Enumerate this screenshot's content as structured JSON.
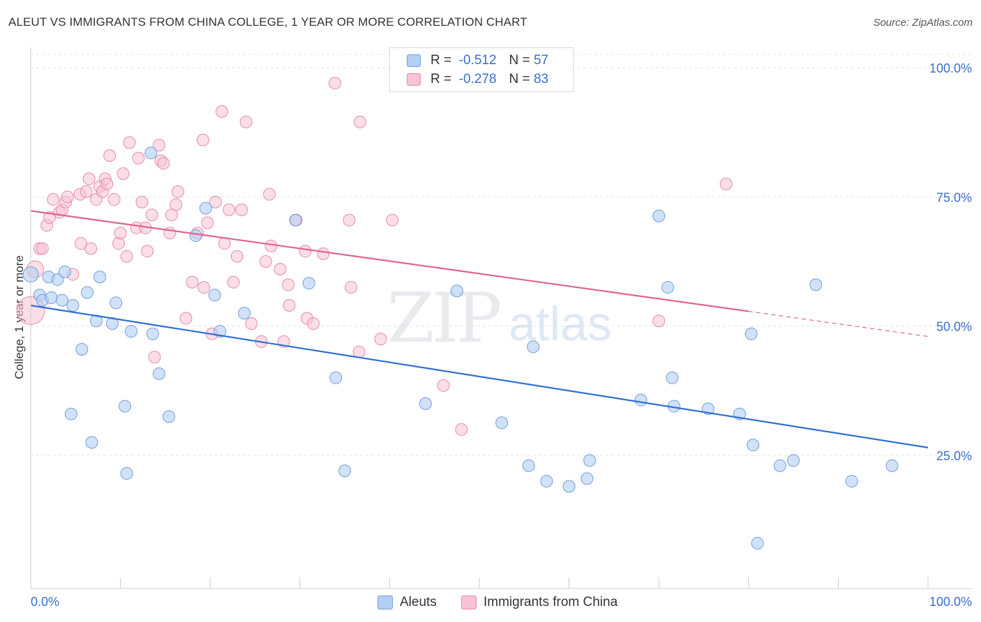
{
  "title": "ALEUT VS IMMIGRANTS FROM CHINA COLLEGE, 1 YEAR OR MORE CORRELATION CHART",
  "source": "Source: ZipAtlas.com",
  "watermark": {
    "zip": "ZIP",
    "atlas": "atlas"
  },
  "legend": {
    "r_label": "R =",
    "n_label": "N =",
    "aleuts": {
      "r": "-0.512",
      "n": "57"
    },
    "china": {
      "r": "-0.278",
      "n": "83"
    }
  },
  "chart_data": {
    "type": "scatter",
    "title": "ALEUT VS IMMIGRANTS FROM CHINA COLLEGE, 1 YEAR OR MORE CORRELATION CHART",
    "xlabel": "",
    "ylabel": "College, 1 year or more",
    "xlim": [
      0,
      100
    ],
    "ylim": [
      0,
      100
    ],
    "x_tick_labels": [
      "0.0%",
      "100.0%"
    ],
    "y_tick_labels": [
      "100.0%",
      "75.0%",
      "50.0%",
      "25.0%"
    ],
    "y_tick_values": [
      100,
      75,
      50,
      25
    ],
    "grid": true,
    "legend_position": "top-center",
    "colors": {
      "aleuts_fill": "#b3cff3",
      "aleuts_stroke": "#6f9fdc",
      "aleuts_line": "#2f6fd0",
      "china_fill": "#f8c3d3",
      "china_stroke": "#e88aaa",
      "china_line": "#e0648d",
      "grid": "#e3e3e3",
      "axis_label": "#3b6fc5"
    },
    "series": [
      {
        "name": "Aleuts",
        "trend": {
          "x": [
            0,
            100
          ],
          "y": [
            54.0,
            26.5
          ],
          "solid_until": 100
        },
        "points": [
          [
            0.0,
            60.0
          ],
          [
            1.0,
            56.0
          ],
          [
            1.3,
            55.0
          ],
          [
            2.0,
            59.5
          ],
          [
            2.3,
            55.5
          ],
          [
            3.0,
            59.0
          ],
          [
            3.5,
            55.0
          ],
          [
            3.8,
            60.5
          ],
          [
            4.5,
            33.0
          ],
          [
            4.7,
            54.0
          ],
          [
            5.7,
            45.5
          ],
          [
            6.3,
            56.5
          ],
          [
            6.8,
            27.5
          ],
          [
            7.3,
            51.0
          ],
          [
            7.7,
            59.5
          ],
          [
            9.1,
            50.5
          ],
          [
            9.5,
            54.5
          ],
          [
            10.5,
            34.5
          ],
          [
            10.7,
            21.5
          ],
          [
            11.2,
            49.0
          ],
          [
            13.4,
            83.5
          ],
          [
            13.6,
            48.5
          ],
          [
            14.3,
            40.8
          ],
          [
            15.4,
            32.5
          ],
          [
            18.4,
            67.5
          ],
          [
            19.5,
            72.8
          ],
          [
            20.5,
            56.0
          ],
          [
            21.1,
            49.0
          ],
          [
            23.8,
            52.5
          ],
          [
            29.5,
            70.5
          ],
          [
            31.0,
            58.3
          ],
          [
            34.0,
            40.0
          ],
          [
            35.0,
            22.0
          ],
          [
            44.0,
            35.0
          ],
          [
            47.5,
            56.8
          ],
          [
            52.5,
            31.3
          ],
          [
            55.5,
            23.0
          ],
          [
            56.0,
            46.0
          ],
          [
            57.5,
            20.0
          ],
          [
            60.0,
            19.0
          ],
          [
            62.0,
            20.5
          ],
          [
            62.3,
            24.0
          ],
          [
            68.0,
            35.7
          ],
          [
            70.0,
            71.3
          ],
          [
            71.0,
            57.5
          ],
          [
            71.5,
            40.0
          ],
          [
            71.7,
            34.5
          ],
          [
            75.5,
            34.0
          ],
          [
            79.0,
            33.0
          ],
          [
            80.3,
            48.5
          ],
          [
            80.5,
            27.0
          ],
          [
            81.0,
            8.0
          ],
          [
            83.5,
            23.0
          ],
          [
            85.0,
            24.0
          ],
          [
            87.5,
            58.0
          ],
          [
            91.5,
            20.0
          ],
          [
            96.0,
            23.0
          ]
        ]
      },
      {
        "name": "Immigrants from China",
        "trend": {
          "x": [
            0,
            100
          ],
          "y": [
            72.3,
            48.0
          ],
          "solid_until": 80
        },
        "points": [
          [
            0.0,
            53.0
          ],
          [
            0.5,
            61.0
          ],
          [
            1.0,
            65.0
          ],
          [
            1.3,
            65.0
          ],
          [
            1.8,
            69.5
          ],
          [
            2.1,
            71.0
          ],
          [
            2.5,
            74.5
          ],
          [
            3.2,
            72.0
          ],
          [
            3.5,
            72.5
          ],
          [
            3.9,
            74.0
          ],
          [
            4.1,
            75.0
          ],
          [
            4.7,
            60.0
          ],
          [
            5.5,
            75.5
          ],
          [
            5.6,
            66.0
          ],
          [
            6.2,
            76.0
          ],
          [
            6.5,
            78.5
          ],
          [
            6.7,
            65.0
          ],
          [
            7.3,
            74.5
          ],
          [
            7.7,
            77.0
          ],
          [
            8.0,
            76.0
          ],
          [
            8.3,
            78.5
          ],
          [
            8.5,
            77.5
          ],
          [
            8.8,
            83.0
          ],
          [
            9.3,
            74.5
          ],
          [
            9.8,
            66.0
          ],
          [
            10.0,
            68.0
          ],
          [
            10.3,
            79.5
          ],
          [
            10.7,
            63.5
          ],
          [
            11.0,
            85.5
          ],
          [
            11.8,
            69.0
          ],
          [
            12.0,
            82.5
          ],
          [
            12.4,
            74.0
          ],
          [
            12.8,
            69.0
          ],
          [
            13.0,
            64.5
          ],
          [
            13.5,
            71.5
          ],
          [
            13.8,
            44.0
          ],
          [
            14.3,
            85.0
          ],
          [
            14.5,
            82.0
          ],
          [
            14.8,
            81.5
          ],
          [
            15.5,
            68.0
          ],
          [
            15.7,
            71.5
          ],
          [
            16.2,
            73.5
          ],
          [
            16.4,
            76.0
          ],
          [
            17.3,
            51.5
          ],
          [
            18.0,
            58.5
          ],
          [
            18.6,
            68.0
          ],
          [
            19.2,
            86.0
          ],
          [
            19.3,
            57.5
          ],
          [
            19.7,
            70.0
          ],
          [
            20.2,
            48.5
          ],
          [
            20.6,
            74.0
          ],
          [
            21.3,
            91.5
          ],
          [
            21.6,
            66.0
          ],
          [
            22.1,
            72.5
          ],
          [
            22.6,
            58.5
          ],
          [
            23.0,
            63.5
          ],
          [
            23.5,
            72.5
          ],
          [
            24.0,
            89.5
          ],
          [
            24.6,
            50.5
          ],
          [
            25.7,
            47.0
          ],
          [
            26.2,
            62.5
          ],
          [
            26.6,
            75.5
          ],
          [
            26.8,
            65.5
          ],
          [
            27.8,
            61.0
          ],
          [
            28.2,
            47.0
          ],
          [
            28.7,
            58.0
          ],
          [
            28.8,
            54.0
          ],
          [
            29.6,
            70.5
          ],
          [
            30.6,
            64.5
          ],
          [
            30.8,
            51.5
          ],
          [
            31.5,
            50.5
          ],
          [
            32.6,
            64.0
          ],
          [
            33.9,
            97.0
          ],
          [
            35.5,
            70.5
          ],
          [
            35.7,
            57.5
          ],
          [
            36.6,
            45.0
          ],
          [
            36.7,
            89.5
          ],
          [
            39.0,
            47.5
          ],
          [
            40.3,
            70.5
          ],
          [
            46.0,
            38.5
          ],
          [
            48.0,
            30.0
          ],
          [
            70.0,
            51.0
          ],
          [
            77.5,
            77.5
          ]
        ]
      }
    ]
  },
  "bottom_legend": {
    "aleuts": "Aleuts",
    "china": "Immigrants from China"
  }
}
